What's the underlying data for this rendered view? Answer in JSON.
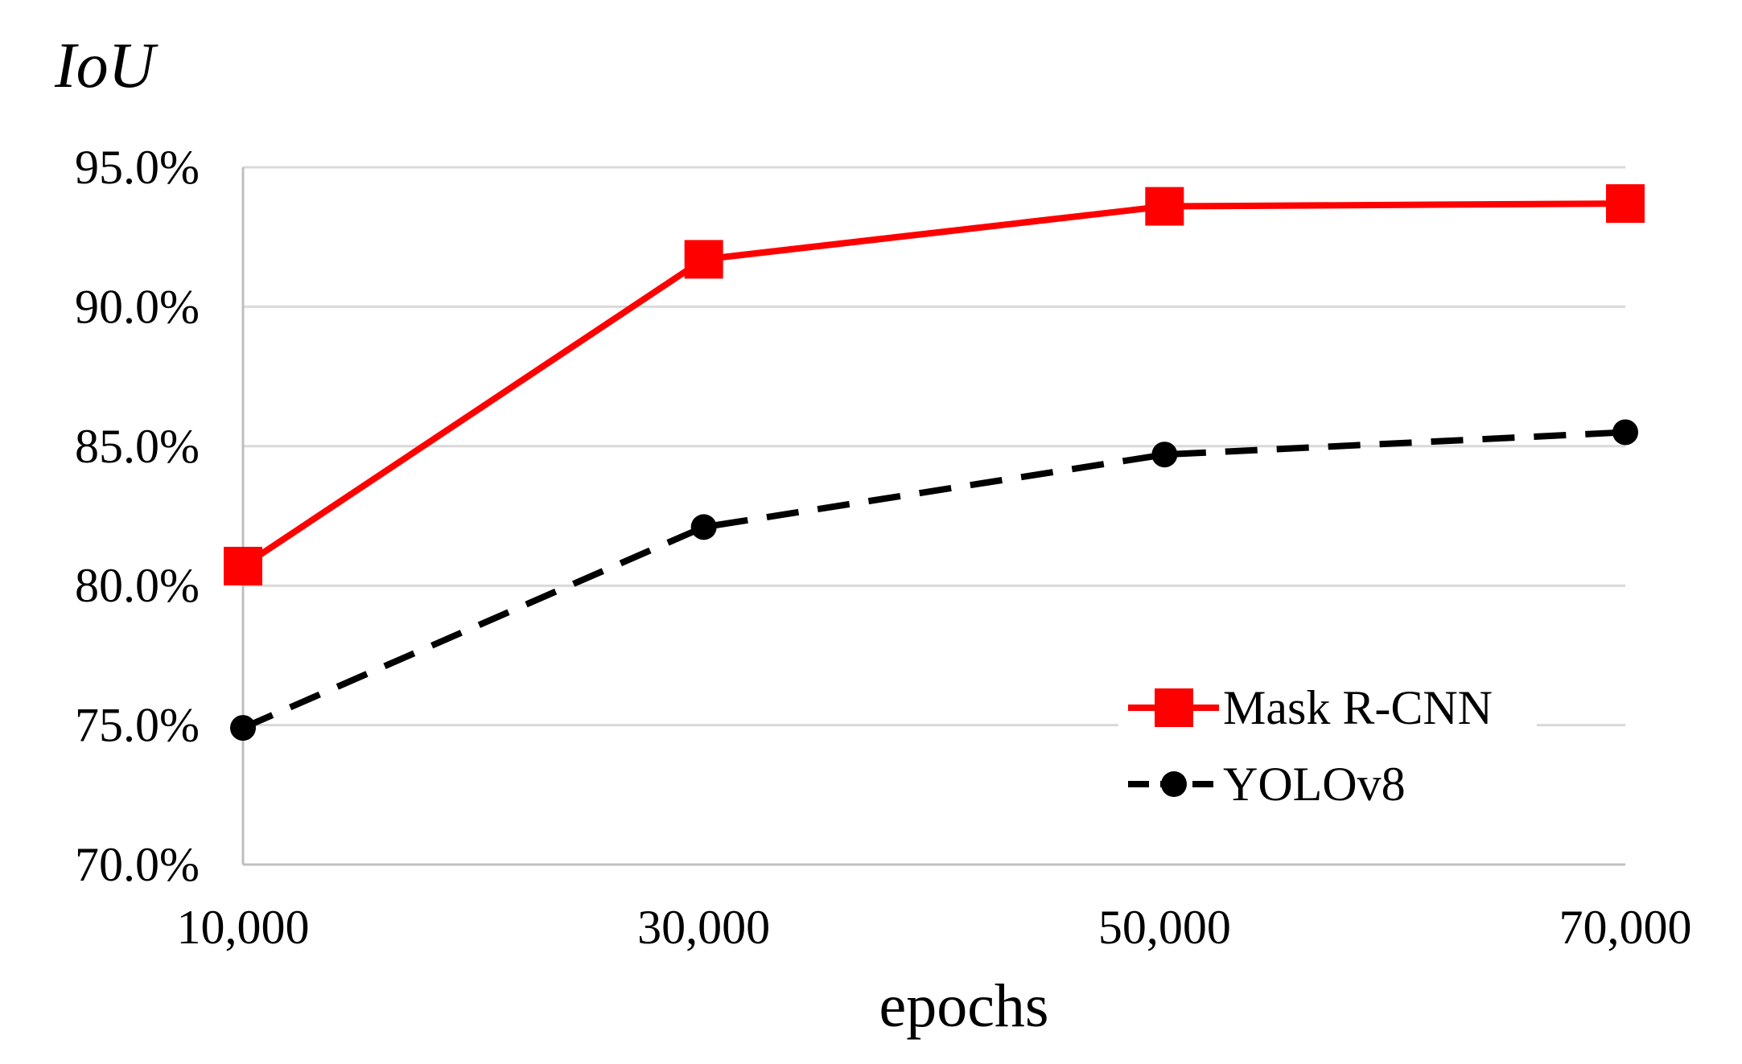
{
  "chart_data": {
    "type": "line",
    "title": "",
    "ylabel": "IoU",
    "xlabel": "epochs",
    "x": [
      10000,
      30000,
      50000,
      70000
    ],
    "x_tick_labels": [
      "10,000",
      "30,000",
      "50,000",
      "70,000"
    ],
    "ylim": [
      70.0,
      95.0
    ],
    "y_ticks": [
      70.0,
      75.0,
      80.0,
      85.0,
      90.0,
      95.0
    ],
    "y_tick_labels": [
      "70.0%",
      "75.0%",
      "80.0%",
      "85.0%",
      "90.0%",
      "95.0%"
    ],
    "grid": "horizontal",
    "legend_position": "bottom-right",
    "series": [
      {
        "name": "Mask R-CNN",
        "values": [
          80.7,
          91.7,
          93.6,
          93.7
        ],
        "color": "#ff0000",
        "line_style": "solid",
        "marker": "square"
      },
      {
        "name": "YOLOv8",
        "values": [
          74.9,
          82.1,
          84.7,
          85.5
        ],
        "color": "#000000",
        "line_style": "dashed",
        "marker": "circle"
      }
    ]
  }
}
